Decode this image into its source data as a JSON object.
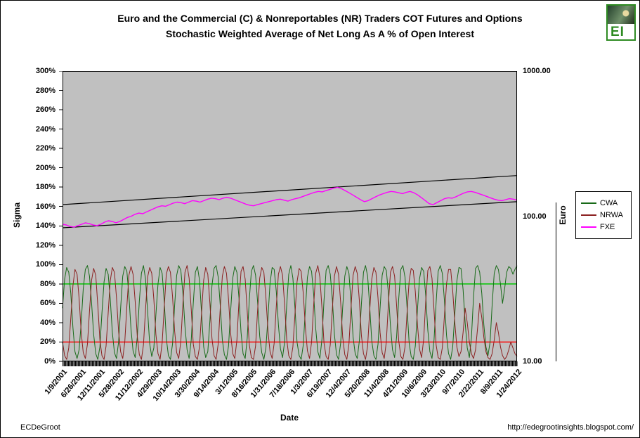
{
  "title": {
    "line1": "Euro and the Commercial (C) & Nonreportables (NR) Traders COT Futures and Options",
    "line2": "Stochastic Weighted Average of Net Long As A % of Open Interest"
  },
  "logo": {
    "text": "EI",
    "color": "#2E8B22"
  },
  "footer": {
    "author": "ECDeGroot",
    "url": "http://edegrootinsights.blogspot.com/"
  },
  "chart_data": {
    "type": "line",
    "plot_background": "#C0C0C0",
    "legend_position": "right",
    "left_axis": {
      "label": "Sigma",
      "min": 0,
      "max": 300,
      "step": 20,
      "tick_labels": [
        "0%",
        "20%",
        "40%",
        "60%",
        "80%",
        "100%",
        "120%",
        "140%",
        "160%",
        "180%",
        "200%",
        "220%",
        "240%",
        "260%",
        "280%",
        "300%"
      ]
    },
    "right_axis": {
      "label": "Euro",
      "scale": "log",
      "min": 10,
      "max": 1000,
      "tick_labels": [
        "10.00",
        "100.00",
        "1000.00"
      ]
    },
    "x": {
      "label": "Date",
      "tick_labels": [
        "1/9/2001",
        "6/26/2001",
        "12/11/2001",
        "5/28/2002",
        "11/12/2002",
        "4/29/2003",
        "10/14/2003",
        "3/30/2004",
        "9/14/2004",
        "3/1/2005",
        "8/16/2005",
        "1/31/2006",
        "7/18/2006",
        "1/3/2007",
        "6/19/2007",
        "12/4/2007",
        "5/20/2008",
        "11/4/2008",
        "4/21/2009",
        "10/6/2009",
        "3/23/2010",
        "9/7/2010",
        "2/22/2011",
        "8/9/2011",
        "1/24/2012"
      ]
    },
    "reference_lines": [
      {
        "axis": "left",
        "value": 80,
        "color": "#00C800"
      },
      {
        "axis": "left",
        "value": 20,
        "color": "#FF0000"
      }
    ],
    "trend_channel": [
      {
        "start_pct": 162,
        "end_pct": 192,
        "color": "#000000"
      },
      {
        "start_pct": 138,
        "end_pct": 165,
        "color": "#000000"
      }
    ],
    "series": [
      {
        "name": "CWA",
        "axis": "left",
        "unit": "percent",
        "color": "#186A18",
        "values": [
          55,
          85,
          97,
          92,
          70,
          35,
          10,
          3,
          12,
          40,
          75,
          95,
          99,
          88,
          60,
          28,
          8,
          2,
          15,
          50,
          82,
          96,
          90,
          65,
          30,
          9,
          3,
          20,
          55,
          88,
          98,
          93,
          68,
          33,
          11,
          4,
          25,
          62,
          91,
          99,
          85,
          52,
          18,
          5,
          14,
          48,
          80,
          97,
          91,
          62,
          24,
          6,
          2,
          18,
          57,
          89,
          99,
          94,
          70,
          36,
          12,
          3,
          22,
          60,
          92,
          98,
          84,
          50,
          15,
          4,
          10,
          42,
          78,
          96,
          99,
          87,
          58,
          22,
          7,
          2,
          16,
          52,
          86,
          98,
          92,
          66,
          30,
          8,
          3,
          24,
          64,
          93,
          99,
          89,
          61,
          26,
          9,
          2,
          14,
          46,
          81,
          97,
          95,
          72,
          38,
          13,
          4,
          20,
          58,
          90,
          99,
          86,
          55,
          20,
          6,
          2,
          17,
          54,
          87,
          98,
          93,
          69,
          34,
          10,
          3,
          23,
          63,
          94,
          99,
          90,
          64,
          28,
          7,
          2,
          19,
          56,
          88,
          98,
          91,
          60,
          25,
          8,
          3,
          21,
          59,
          92,
          99,
          88,
          57,
          21,
          6,
          2,
          18,
          55,
          89,
          98,
          94,
          71,
          37,
          12,
          4,
          26,
          65,
          95,
          99,
          87,
          56,
          19,
          5,
          2,
          16,
          53,
          85,
          97,
          93,
          68,
          32,
          10,
          3,
          22,
          61,
          93,
          99,
          91,
          63,
          27,
          8,
          2,
          15,
          49,
          83,
          97,
          96,
          74,
          40,
          14,
          4,
          24,
          66,
          96,
          99,
          92,
          70,
          38,
          15,
          6,
          20,
          58,
          91,
          99,
          95,
          80,
          60,
          75,
          92,
          98,
          96,
          90,
          95,
          99
        ]
      },
      {
        "name": "NRWA",
        "axis": "left",
        "unit": "percent",
        "color": "#8B2020",
        "values": [
          20,
          6,
          2,
          14,
          45,
          78,
          95,
          90,
          65,
          30,
          9,
          3,
          18,
          52,
          84,
          96,
          89,
          58,
          22,
          6,
          2,
          16,
          50,
          83,
          97,
          92,
          66,
          31,
          10,
          3,
          20,
          57,
          89,
          98,
          90,
          62,
          26,
          7,
          2,
          17,
          54,
          87,
          97,
          91,
          64,
          28,
          8,
          2,
          19,
          56,
          90,
          98,
          92,
          67,
          32,
          9,
          3,
          21,
          60,
          92,
          99,
          86,
          54,
          18,
          5,
          2,
          15,
          50,
          84,
          97,
          90,
          60,
          24,
          6,
          2,
          18,
          55,
          88,
          98,
          91,
          64,
          29,
          8,
          3,
          22,
          61,
          93,
          98,
          85,
          52,
          17,
          4,
          2,
          16,
          53,
          86,
          97,
          92,
          66,
          31,
          10,
          3,
          19,
          57,
          90,
          98,
          89,
          59,
          23,
          6,
          2,
          15,
          49,
          82,
          96,
          93,
          70,
          35,
          11,
          3,
          20,
          58,
          91,
          99,
          87,
          55,
          19,
          5,
          2,
          17,
          54,
          88,
          98,
          90,
          61,
          25,
          7,
          2,
          18,
          56,
          89,
          98,
          91,
          63,
          27,
          8,
          2,
          16,
          52,
          85,
          97,
          92,
          65,
          30,
          9,
          3,
          20,
          59,
          92,
          98,
          88,
          57,
          21,
          5,
          2,
          15,
          50,
          83,
          96,
          94,
          72,
          38,
          13,
          4,
          23,
          62,
          94,
          98,
          86,
          53,
          17,
          4,
          2,
          14,
          47,
          80,
          95,
          95,
          73,
          40,
          15,
          5,
          10,
          30,
          55,
          40,
          20,
          8,
          3,
          12,
          35,
          60,
          45,
          25,
          10,
          4,
          2,
          8,
          22,
          40,
          30,
          15,
          6,
          2,
          5,
          12,
          20,
          14,
          8,
          5
        ]
      },
      {
        "name": "FXE",
        "axis": "right",
        "unit": "price",
        "color": "#FF00FF",
        "values": [
          88,
          87,
          85,
          84,
          86,
          88,
          90,
          89,
          87,
          86,
          88,
          91,
          93,
          92,
          90,
          92,
          95,
          98,
          100,
          103,
          105,
          104,
          107,
          110,
          113,
          116,
          118,
          117,
          120,
          123,
          125,
          124,
          122,
          125,
          128,
          127,
          125,
          128,
          131,
          133,
          132,
          130,
          133,
          135,
          133,
          130,
          127,
          124,
          121,
          119,
          118,
          120,
          122,
          124,
          126,
          128,
          130,
          131,
          129,
          127,
          130,
          132,
          134,
          137,
          140,
          143,
          146,
          148,
          147,
          150,
          153,
          156,
          158,
          155,
          150,
          145,
          140,
          135,
          130,
          126,
          128,
          132,
          136,
          140,
          143,
          146,
          148,
          147,
          145,
          143,
          146,
          148,
          145,
          140,
          134,
          128,
          122,
          120,
          124,
          128,
          132,
          134,
          133,
          136,
          140,
          144,
          147,
          148,
          146,
          143,
          140,
          137,
          134,
          131,
          129,
          128,
          130,
          132,
          131,
          129
        ]
      }
    ]
  }
}
